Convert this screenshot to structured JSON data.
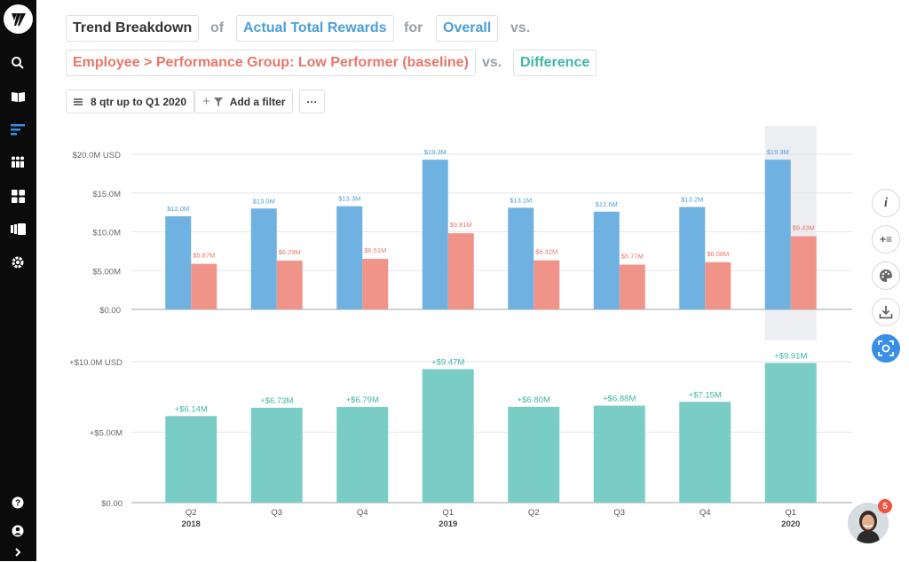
{
  "query": {
    "analysis": "Trend Breakdown",
    "of": "of",
    "metric": "Actual Total Rewards",
    "for": "for",
    "population": "Overall",
    "vs1": "vs.",
    "comparison": "Employee > Performance Group: Low Performer (baseline)",
    "vs2": "vs.",
    "mode": "Difference"
  },
  "controls": {
    "time_range": "8 qtr up to Q1 2020",
    "add_filter": "Add a filter",
    "more": "···"
  },
  "colors": {
    "overall": "#6fb1e0",
    "baseline": "#f0948a",
    "difference": "#7acdc5",
    "metric_text": "#4a9fd8",
    "comparison_text": "#e8776a",
    "mode_text": "#3fb5a6",
    "active_tool": "#3a8ee6"
  },
  "chart_data": [
    {
      "type": "bar",
      "categories": [
        "Q2",
        "Q3",
        "Q4",
        "Q1",
        "Q2",
        "Q3",
        "Q4",
        "Q1"
      ],
      "years": [
        "2018",
        "",
        "",
        "2019",
        "",
        "",
        "",
        "2020"
      ],
      "series": [
        {
          "name": "Overall",
          "values": [
            12.0,
            13.0,
            13.3,
            19.3,
            13.1,
            12.6,
            13.2,
            19.3
          ],
          "labels": [
            "$12.0M",
            "$13.0M",
            "$13.3M",
            "$19.3M",
            "$13.1M",
            "$12.6M",
            "$13.2M",
            "$19.3M"
          ]
        },
        {
          "name": "Employee > Performance Group: Low Performer (baseline)",
          "values": [
            5.87,
            6.29,
            6.51,
            9.81,
            6.32,
            5.77,
            6.08,
            9.43
          ],
          "labels": [
            "$5.87M",
            "$6.29M",
            "$6.51M",
            "$9.81M",
            "$6.32M",
            "$5.77M",
            "$6.08M",
            "$9.43M"
          ]
        }
      ],
      "yticks": [
        "$0.00",
        "$5.00M",
        "$10.0M",
        "$15.0M",
        "$20.0M USD"
      ],
      "ylim": [
        0,
        20
      ],
      "grid": true,
      "highlighted_category_index": 7
    },
    {
      "type": "bar",
      "categories": [
        "Q2",
        "Q3",
        "Q4",
        "Q1",
        "Q2",
        "Q3",
        "Q4",
        "Q1"
      ],
      "years": [
        "2018",
        "",
        "",
        "2019",
        "",
        "",
        "",
        "2020"
      ],
      "series": [
        {
          "name": "Difference",
          "values": [
            6.14,
            6.73,
            6.79,
            9.47,
            6.8,
            6.88,
            7.15,
            9.91
          ],
          "labels": [
            "+$6.14M",
            "+$6.73M",
            "+$6.79M",
            "+$9.47M",
            "+$6.80M",
            "+$6.88M",
            "+$7.15M",
            "+$9.91M"
          ]
        }
      ],
      "yticks": [
        "$0.00",
        "+$5.00M",
        "+$10.0M USD"
      ],
      "ylim": [
        0,
        10
      ],
      "grid": true
    }
  ],
  "tools": {
    "info": "i",
    "add_metric": "+≡"
  },
  "notifications": {
    "count": "5"
  }
}
